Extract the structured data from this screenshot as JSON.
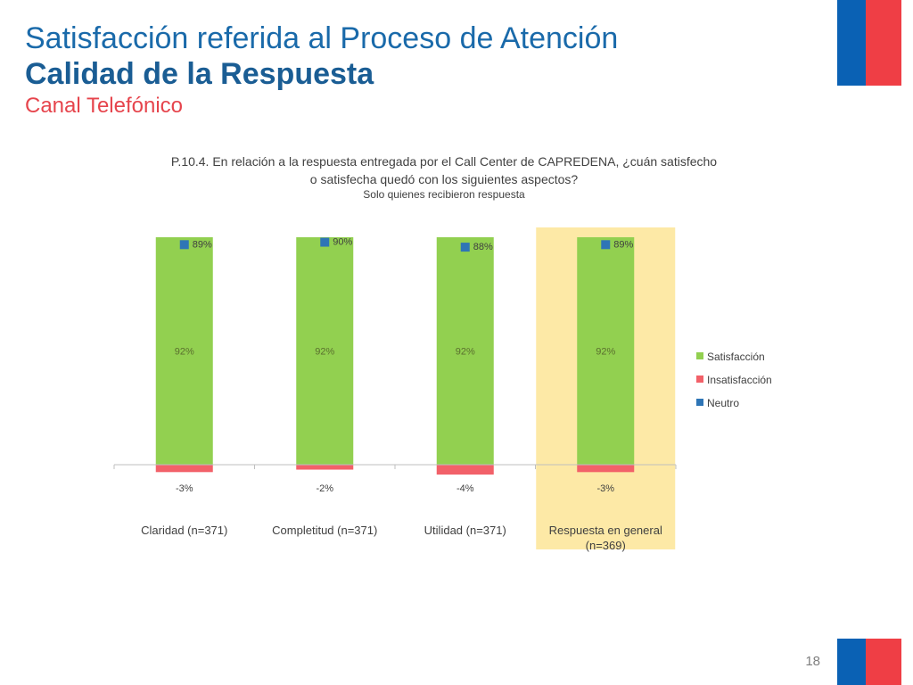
{
  "slide": {
    "title_line1": "Satisfacción referida al Proceso de Atención",
    "title_line2": "Calidad de la Respuesta",
    "title_line3": "Canal Telefónico",
    "page_number": "18"
  },
  "colors": {
    "satisfaccion": "#92d050",
    "insatisfaccion": "#f26169",
    "neutro": "#2e75b6",
    "highlight": "#fde9a6",
    "title_blue": "#1a6aaa",
    "subtitle_red": "#e6444c",
    "flag_blue": "#0a61b4",
    "flag_red": "#ef3e45"
  },
  "chart_data": {
    "type": "bar",
    "title_lines": [
      "P.10.4. En relación a la respuesta entregada por el Call Center de CAPREDENA, ¿cuán satisfecho",
      "o satisfecha quedó  con los siguientes aspectos?"
    ],
    "subtitle": "Solo quienes recibieron respuesta",
    "category_lines": [
      [
        "Claridad (n=371)"
      ],
      [
        "Completitud (n=371)"
      ],
      [
        "Utilidad (n=371)"
      ],
      [
        "Respuesta en general",
        "(n=369)"
      ]
    ],
    "highlighted_category": 3,
    "series": [
      {
        "name": "Satisfacción",
        "type": "bar",
        "values": [
          92,
          92,
          92,
          92
        ],
        "labels": [
          "92%",
          "92%",
          "92%",
          "92%"
        ]
      },
      {
        "name": "Insatisfacción",
        "type": "bar",
        "values": [
          -3,
          -2,
          -4,
          -3
        ],
        "labels": [
          "-3%",
          "-2%",
          "-4%",
          "-3%"
        ]
      },
      {
        "name": "Neutro",
        "type": "marker",
        "values": [
          89,
          90,
          88,
          89
        ],
        "labels": [
          "89%",
          "90%",
          "88%",
          "89%"
        ]
      }
    ],
    "ylim": [
      -4,
      92
    ],
    "legend_position": "right"
  }
}
